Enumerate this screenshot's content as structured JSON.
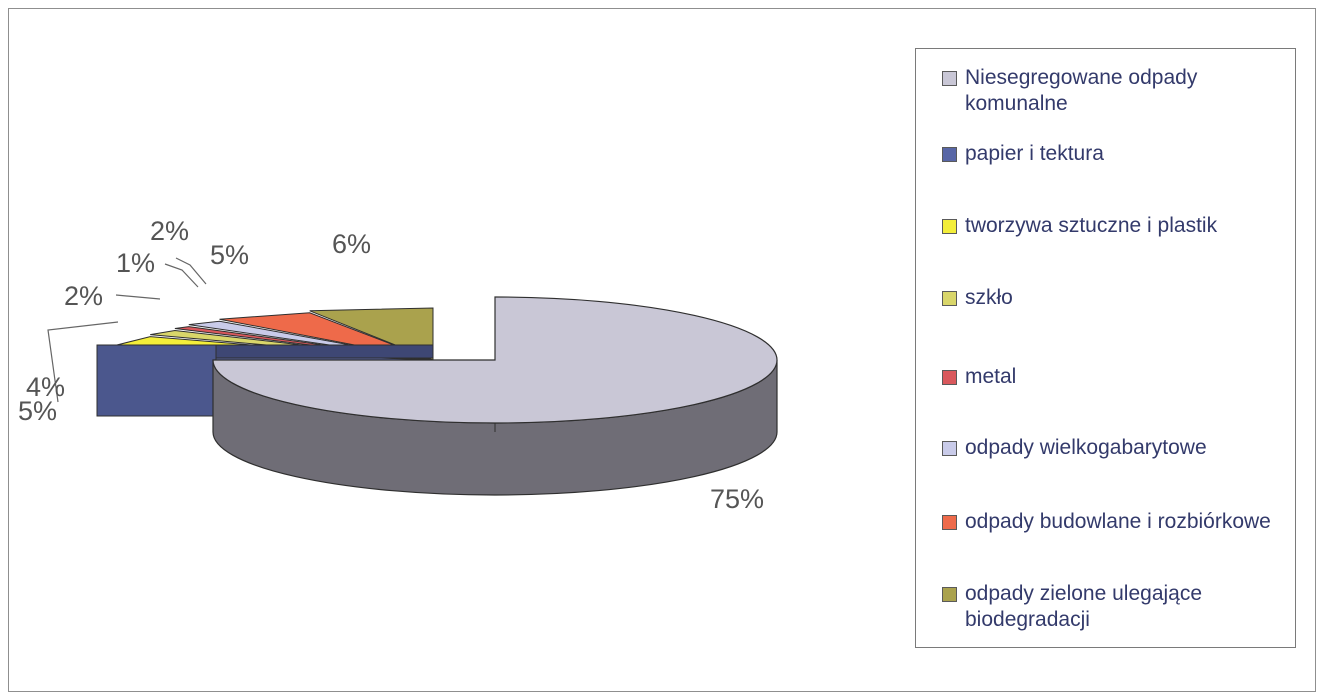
{
  "chart_data": {
    "type": "pie",
    "title": "",
    "legend_position": "right",
    "slices": [
      {
        "label": "Niesegregowane odpady komunalne",
        "value": 75,
        "display": "75%",
        "color": "#c9c7d6"
      },
      {
        "label": "papier i tektura",
        "value": 5,
        "display": "5%",
        "color": "#5866a6"
      },
      {
        "label": "tworzywa sztuczne i plastik",
        "value": 4,
        "display": "4%",
        "color": "#f3ee3a"
      },
      {
        "label": "szkło",
        "value": 2,
        "display": "2%",
        "color": "#d9d66a"
      },
      {
        "label": "metal",
        "value": 1,
        "display": "1%",
        "color": "#d9585c"
      },
      {
        "label": "odpady wielkogabarytowe",
        "value": 2,
        "display": "2%",
        "color": "#c9cbe9"
      },
      {
        "label": "odpady budowlane i rozbiórkowe",
        "value": 5,
        "display": "5%",
        "color": "#ee6a4a"
      },
      {
        "label": "odpady zielone ulegające biodegradacji",
        "value": 6,
        "display": "6%",
        "color": "#aaa24d"
      }
    ]
  }
}
